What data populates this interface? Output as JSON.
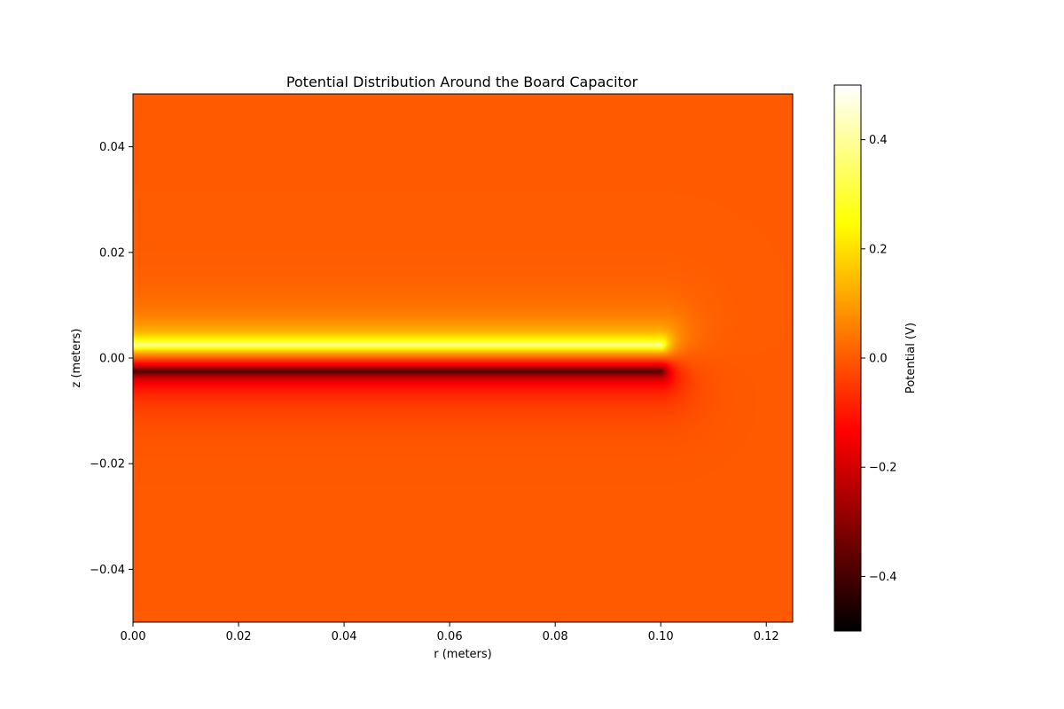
{
  "chart_data": {
    "type": "heatmap",
    "title": "Potential Distribution Around the Board Capacitor",
    "xlabel": "r (meters)",
    "ylabel": "z (meters)",
    "xlim": [
      0.0,
      0.125
    ],
    "ylim": [
      -0.05,
      0.05
    ],
    "x_ticks": [
      0.0,
      0.02,
      0.04,
      0.06,
      0.08,
      0.1,
      0.12
    ],
    "x_tick_labels": [
      "0.00",
      "0.02",
      "0.04",
      "0.06",
      "0.08",
      "0.10",
      "0.12"
    ],
    "y_ticks": [
      -0.04,
      -0.02,
      0.0,
      0.02,
      0.04
    ],
    "y_tick_labels": [
      "−0.04",
      "−0.02",
      "0.00",
      "0.02",
      "0.04"
    ],
    "colormap": "hot",
    "colorbar": {
      "label": "Potential (V)",
      "vmin": -0.5,
      "vmax": 0.5,
      "ticks": [
        -0.4,
        -0.2,
        0.0,
        0.2,
        0.4
      ],
      "tick_labels": [
        "−0.4",
        "−0.2",
        "0.0",
        "0.2",
        "0.4"
      ]
    },
    "field": {
      "background_potential": 0.0,
      "plates": [
        {
          "name": "top",
          "z": 0.0025,
          "r_min": 0.0,
          "r_max": 0.1,
          "potential": 0.5
        },
        {
          "name": "bottom",
          "z": -0.0025,
          "r_min": 0.0,
          "r_max": 0.1,
          "potential": -0.5
        }
      ]
    },
    "grid": false
  }
}
